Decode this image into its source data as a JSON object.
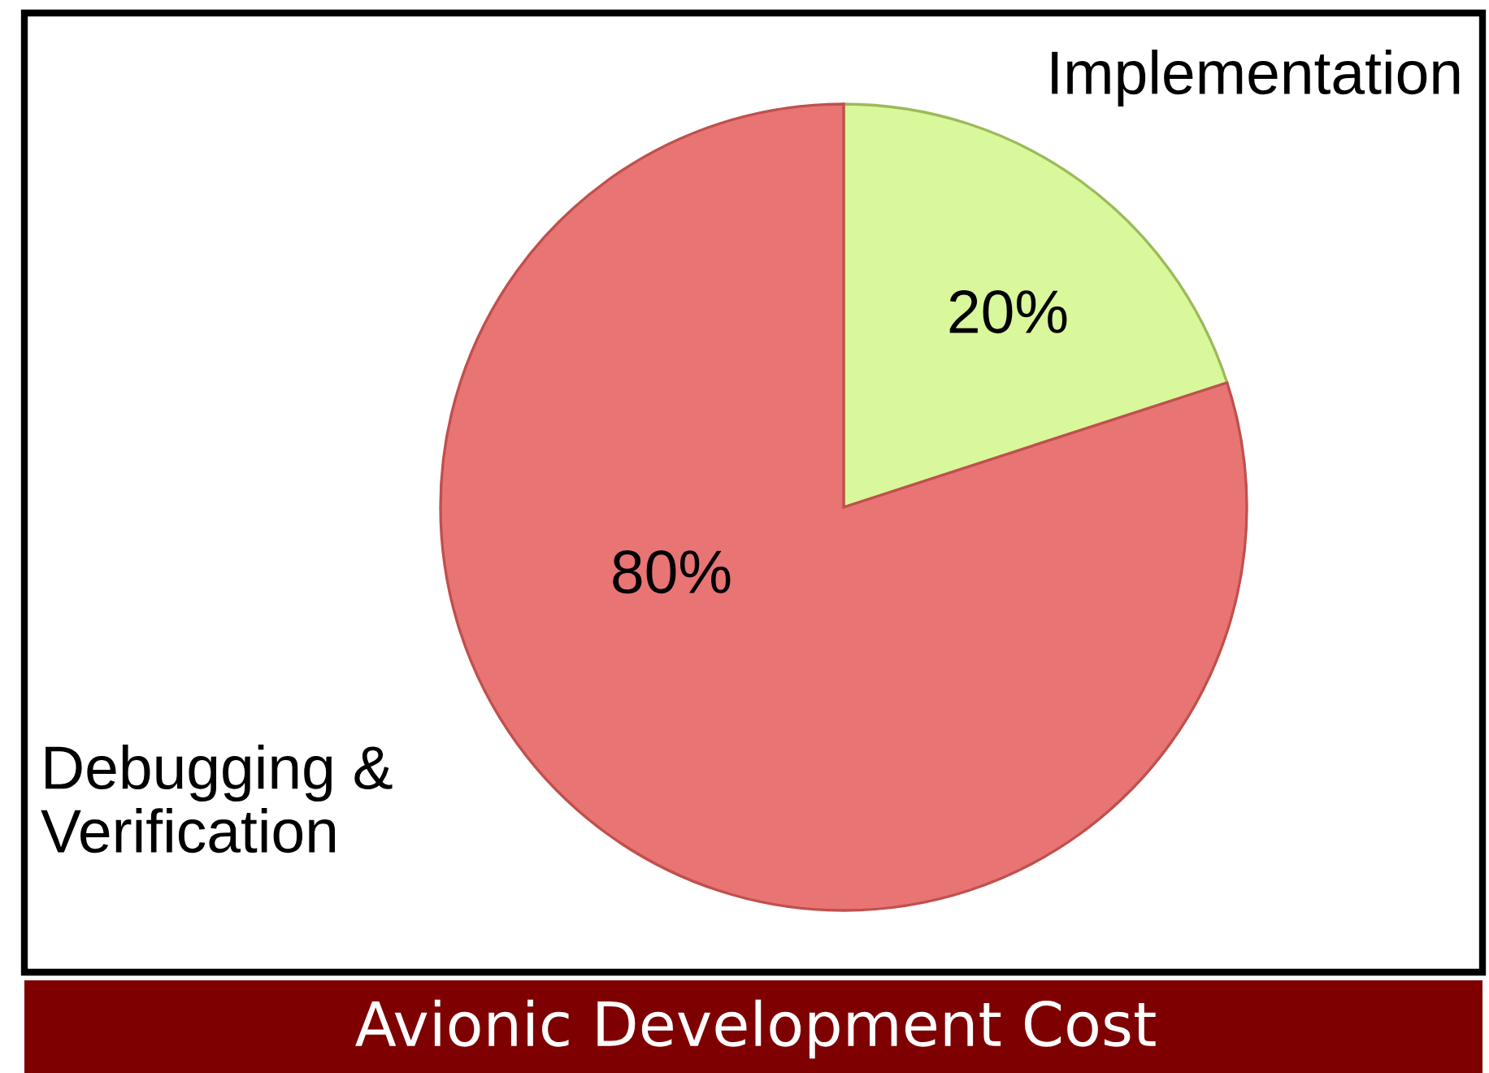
{
  "chart_data": {
    "type": "pie",
    "title": "Avionic Development Cost",
    "categories": [
      "Implementation",
      "Debugging &\nVerification"
    ],
    "values": [
      20,
      80
    ],
    "value_labels": [
      "20%",
      "80%"
    ],
    "colors": [
      "#d9f79b",
      "#e87474"
    ],
    "legend": false
  }
}
